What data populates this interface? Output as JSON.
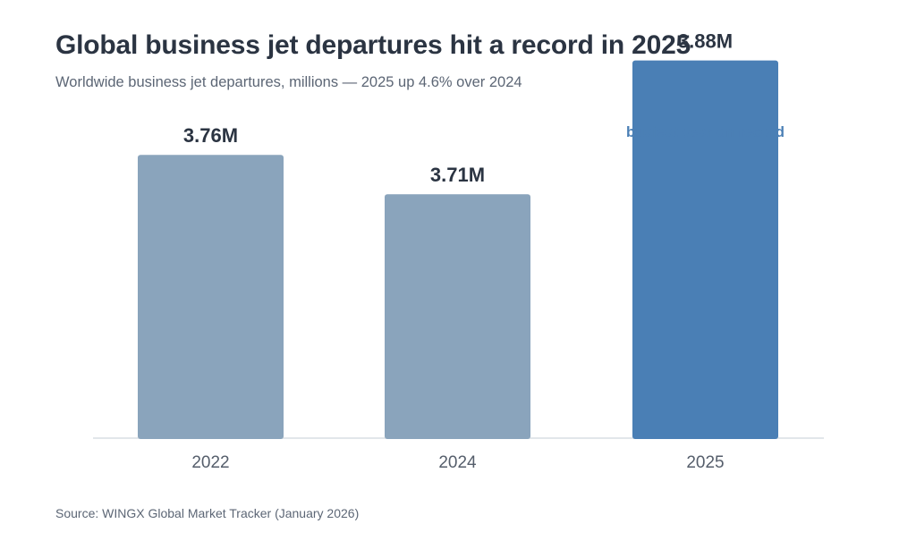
{
  "chart_data": {
    "type": "bar",
    "title": "Global business jet departures hit a record in 2025",
    "subtitle": "Worldwide business jet departures, millions — 2025 up 4.6% over 2024",
    "source": "Source: WINGX Global Market Tracker (January 2026)",
    "categories": [
      "2022",
      "2024",
      "2025"
    ],
    "values": [
      3.76,
      3.71,
      3.88
    ],
    "value_labels": [
      "3.76M",
      "3.71M",
      "3.88M"
    ],
    "highlight_index": 2,
    "annotation": "busiest year on record",
    "ylim": [
      3.4,
      3.95
    ],
    "grid": false,
    "legend": "none",
    "colors": {
      "bar": "#8aa4bc",
      "highlight": "#4a7fb5",
      "annotation": "#4a7fb5",
      "value_label": "#2b3442",
      "tick_label": "#555e6b",
      "axis": "#d8dde3"
    }
  }
}
